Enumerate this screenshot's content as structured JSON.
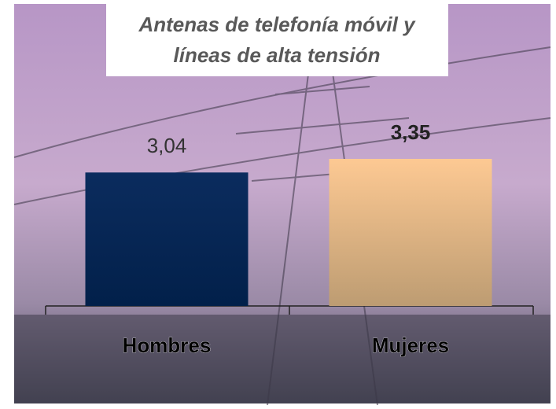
{
  "chart_data": {
    "type": "bar",
    "title": "Antenas de telefonía móvil y líneas de alta tensión",
    "categories": [
      "Hombres",
      "Mujeres"
    ],
    "values": [
      3.04,
      3.35
    ],
    "value_labels": [
      "3,04",
      "3,35"
    ],
    "colors": [
      "#0b2c5e",
      "#f6c08c"
    ]
  }
}
